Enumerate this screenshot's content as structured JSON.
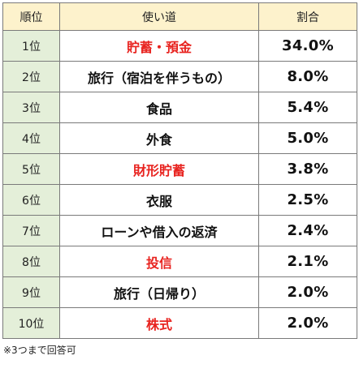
{
  "table": {
    "headers": [
      "順位",
      "使い道",
      "割合"
    ],
    "rows": [
      {
        "rank": "1位",
        "use": "貯蓄・預金",
        "share": "34.0%",
        "highlight": true
      },
      {
        "rank": "2位",
        "use": "旅行（宿泊を伴うもの）",
        "share": "8.0%",
        "highlight": false
      },
      {
        "rank": "3位",
        "use": "食品",
        "share": "5.4%",
        "highlight": false
      },
      {
        "rank": "4位",
        "use": "外食",
        "share": "5.0%",
        "highlight": false
      },
      {
        "rank": "5位",
        "use": "財形貯蓄",
        "share": "3.8%",
        "highlight": true
      },
      {
        "rank": "6位",
        "use": "衣服",
        "share": "2.5%",
        "highlight": false
      },
      {
        "rank": "7位",
        "use": "ローンや借入の返済",
        "share": "2.4%",
        "highlight": false
      },
      {
        "rank": "8位",
        "use": "投信",
        "share": "2.1%",
        "highlight": true
      },
      {
        "rank": "9位",
        "use": "旅行（日帰り）",
        "share": "2.0%",
        "highlight": false
      },
      {
        "rank": "10位",
        "use": "株式",
        "share": "2.0%",
        "highlight": true
      }
    ]
  },
  "colors": {
    "header_bg": "#fdf2cc",
    "rank_bg": "#e4efd9",
    "highlight_text": "#e8231f",
    "border": "#7a7a7a"
  },
  "footnote": "※3つまで回答可"
}
